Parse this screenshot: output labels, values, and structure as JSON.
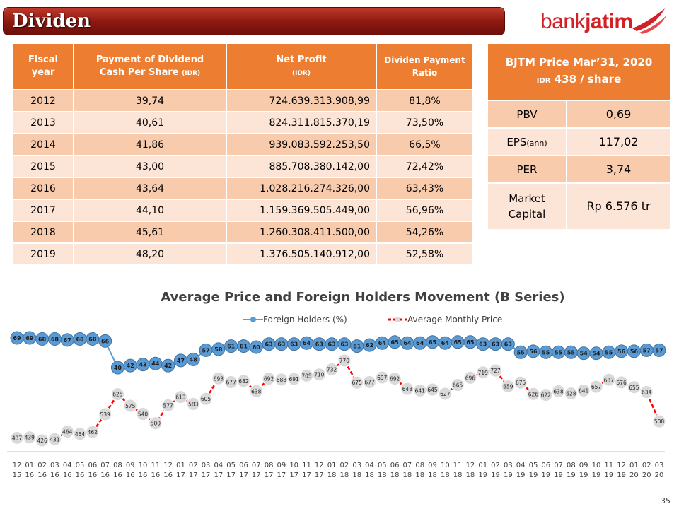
{
  "header": {
    "title": "Dividen",
    "logo_part1": "bank",
    "logo_part2": "jatim"
  },
  "dividend_table": {
    "headers": {
      "year_line1": "Fiscal",
      "year_line2": "year",
      "pay_line1": "Payment of Dividend",
      "pay_line2": "Cash Per Share",
      "pay_unit": "(IDR)",
      "net_line1": "Net Profit",
      "net_unit": "(IDR)",
      "ratio_line1": "Dividen Payment",
      "ratio_line2": "Ratio"
    },
    "rows": [
      {
        "year": "2012",
        "pay": "39,74",
        "net": "724.639.313.908,99",
        "ratio": "81,8%"
      },
      {
        "year": "2013",
        "pay": "40,61",
        "net": "824.311.815.370,19",
        "ratio": "73,50%"
      },
      {
        "year": "2014",
        "pay": "41,86",
        "net": "939.083.592.253,50",
        "ratio": "66,5%"
      },
      {
        "year": "2015",
        "pay": "43,00",
        "net": "885.708.380.142,00",
        "ratio": "72,42%"
      },
      {
        "year": "2016",
        "pay": "43,64",
        "net": "1.028.216.274.326,00",
        "ratio": "63,43%"
      },
      {
        "year": "2017",
        "pay": "44,10",
        "net": "1.159.369.505.449,00",
        "ratio": "56,96%"
      },
      {
        "year": "2018",
        "pay": "45,61",
        "net": "1.260.308.411.500,00",
        "ratio": "54,26%"
      },
      {
        "year": "2019",
        "pay": "48,20",
        "net": "1.376.505.140.912,00",
        "ratio": "52,58%"
      }
    ]
  },
  "price_table": {
    "title_line1": "BJTM Price Mar’31, 2020",
    "title_unit": "IDR",
    "title_line2": "438 / share",
    "rows": {
      "pbv_label": "PBV",
      "pbv_value": "0,69",
      "eps_label": "EPS",
      "eps_sub": "(ann)",
      "eps_value": "117,02",
      "per_label": "PER",
      "per_value": "3,74",
      "mc_label1": "Market",
      "mc_label2": "Capital",
      "mc_value": "Rp 6.576 tr"
    }
  },
  "chart_data": {
    "type": "line",
    "title": "Average Price and Foreign Holders Movement (B Series)",
    "x": [
      "12 15",
      "01 16",
      "02 16",
      "03 16",
      "04 16",
      "05 16",
      "06 16",
      "07 16",
      "08 16",
      "09 16",
      "10 16",
      "11 16",
      "12 16",
      "01 17",
      "02 17",
      "03 17",
      "04 17",
      "05 17",
      "06 17",
      "07 17",
      "08 17",
      "09 17",
      "10 17",
      "11 17",
      "12 17",
      "01 18",
      "02 18",
      "03 18",
      "04 18",
      "05 18",
      "06 18",
      "07 18",
      "08 18",
      "09 18",
      "10 18",
      "11 18",
      "12 18",
      "01 19",
      "02 19",
      "03 19",
      "04 19",
      "05 19",
      "06 19",
      "07 19",
      "08 19",
      "09 19",
      "10 19",
      "11 19",
      "12 19",
      "01 20",
      "02 20",
      "03 20"
    ],
    "series": [
      {
        "name": "Foreign Holders (%)",
        "color": "#5b9bd5",
        "values": [
          69,
          69,
          68,
          68,
          67,
          68,
          68,
          66,
          40,
          42,
          43,
          44,
          42,
          47,
          48,
          57,
          58,
          61,
          61,
          60,
          63,
          63,
          63,
          64,
          63,
          63,
          63,
          61,
          62,
          64,
          65,
          64,
          64,
          65,
          64,
          65,
          65,
          63,
          63,
          63,
          55,
          56,
          55,
          55,
          55,
          54,
          54,
          55,
          56,
          56,
          57,
          57
        ]
      },
      {
        "name": "Average Monthly Price",
        "color": "#ff0000",
        "values": [
          437,
          439,
          426,
          431,
          464,
          454,
          462,
          539,
          625,
          575,
          540,
          500,
          577,
          613,
          583,
          605,
          693,
          677,
          682,
          638,
          692,
          688,
          691,
          705,
          710,
          732,
          770,
          675,
          677,
          697,
          692,
          648,
          641,
          645,
          627,
          665,
          696,
          719,
          727,
          659,
          675,
          626,
          622,
          638,
          628,
          641,
          657,
          687,
          676,
          655,
          634,
          508
        ]
      }
    ]
  },
  "page_number": "35"
}
